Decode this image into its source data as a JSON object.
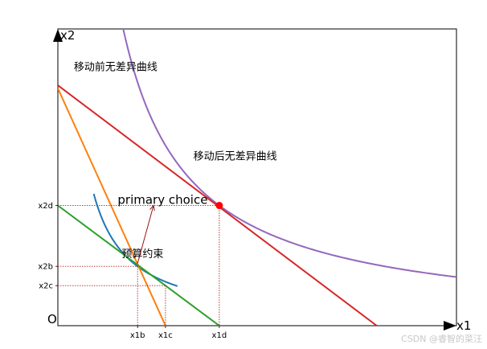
{
  "chart_data": {
    "type": "line",
    "title": "",
    "xlabel": "x1",
    "ylabel": "x2",
    "origin_label": "O",
    "xlim": [
      0,
      10
    ],
    "ylim": [
      0,
      10
    ],
    "grid": false,
    "x_ticks": [
      {
        "label": "x1b",
        "value": 2.0
      },
      {
        "label": "x1c",
        "value": 2.7
      },
      {
        "label": "x1d",
        "value": 4.05
      }
    ],
    "y_ticks": [
      {
        "label": "x2d",
        "value": 4.05
      },
      {
        "label": "x2b",
        "value": 2.0
      },
      {
        "label": "x2c",
        "value": 1.35
      }
    ],
    "series": [
      {
        "color": "#1f77b4",
        "kind": "indifference",
        "k": 4.0,
        "x_range": [
          0.9,
          3.0
        ]
      },
      {
        "color": "#9467bd",
        "kind": "indifference",
        "k": 16.4,
        "x_range": [
          1.6,
          10.0
        ]
      },
      {
        "color": "#ff7f0e",
        "kind": "budget",
        "points": [
          [
            0,
            8.0
          ],
          [
            2.7,
            0
          ]
        ]
      },
      {
        "color": "#d62728",
        "kind": "budget",
        "points": [
          [
            0,
            8.1
          ],
          [
            8.0,
            0
          ]
        ]
      },
      {
        "color": "#2ca02c",
        "kind": "budget",
        "points": [
          [
            0,
            4.05
          ],
          [
            4.05,
            0
          ]
        ]
      }
    ],
    "point": {
      "x": 4.05,
      "y": 4.05,
      "color": "#ff0000"
    },
    "guides": [
      {
        "x": 4.05,
        "y": 4.05
      },
      {
        "x": 2.0,
        "y": 2.0
      },
      {
        "x": 2.7,
        "y": 1.35
      }
    ],
    "annotations": [
      {
        "key": "before",
        "text": "移动前无差异曲线",
        "x": 0.4,
        "y": 8.6
      },
      {
        "key": "after",
        "text": "移动后无差异曲线",
        "x": 3.4,
        "y": 5.6
      },
      {
        "key": "primary",
        "text": "primary choice",
        "x": 1.5,
        "y": 4.1
      },
      {
        "key": "budget",
        "text": "预算约束",
        "x": 1.6,
        "y": 2.3
      }
    ],
    "arrow": {
      "from": [
        2.0,
        2.1
      ],
      "to": [
        2.4,
        4.05
      ],
      "color": "#8b0000"
    }
  },
  "watermark": "CSDN @睿智的菜汪"
}
